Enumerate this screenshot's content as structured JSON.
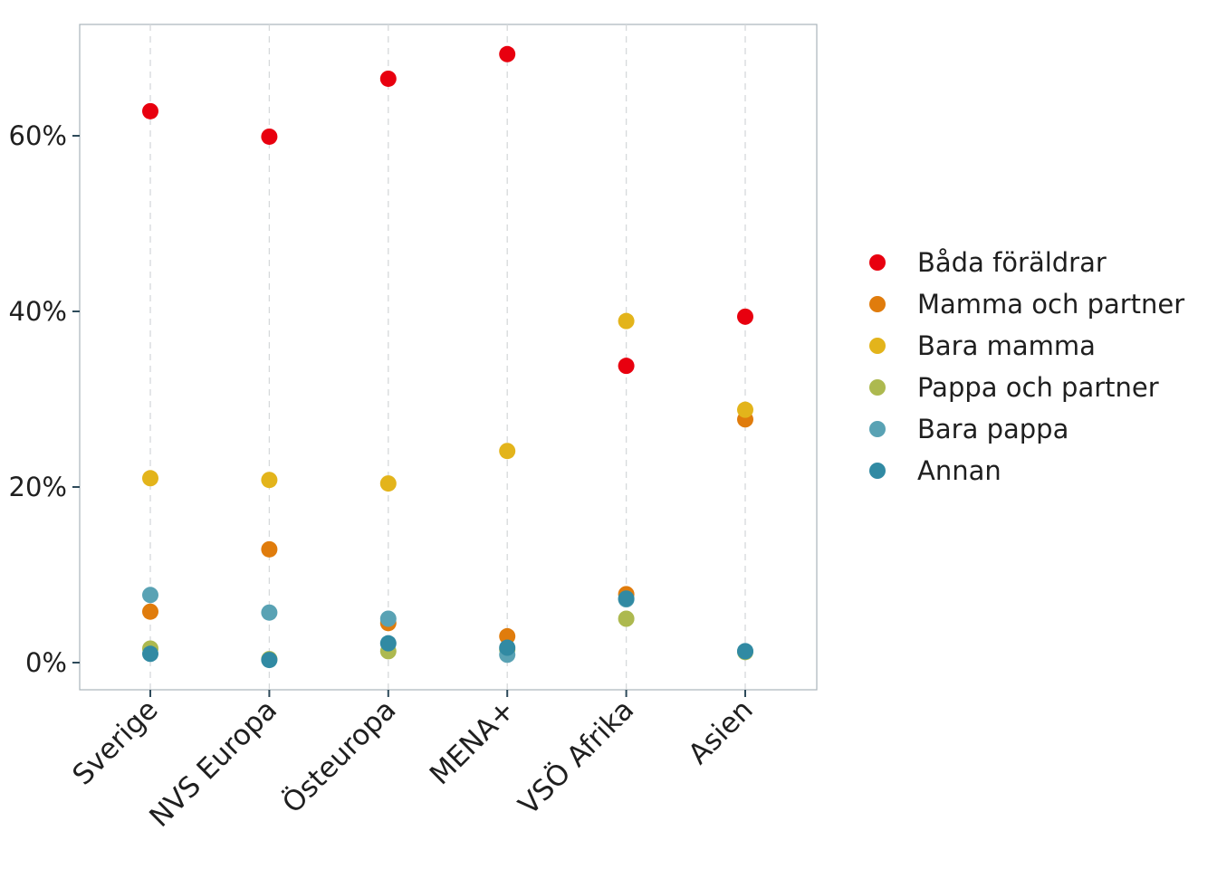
{
  "chart_data": {
    "type": "scatter",
    "title": "",
    "xlabel": "",
    "ylabel": "",
    "categories": [
      "Sverige",
      "NVS Europa",
      "Östeuropa",
      "MENA+",
      "VSÖ Afrika",
      "Asien"
    ],
    "y_ticks": [
      {
        "value": 0,
        "label": "0%"
      },
      {
        "value": 0.2,
        "label": "20%"
      },
      {
        "value": 0.4,
        "label": "40%"
      },
      {
        "value": 0.6,
        "label": "60%"
      }
    ],
    "ylim": [
      -0.03,
      0.73
    ],
    "grid": "vertical-dashed",
    "legend_position": "right",
    "series": [
      {
        "name": "Båda föräldrar",
        "color": "#e8000f",
        "values": [
          0.628,
          0.599,
          0.665,
          0.693,
          0.338,
          0.394
        ]
      },
      {
        "name": "Mamma och partner",
        "color": "#e07c0c",
        "values": [
          0.058,
          0.129,
          0.045,
          0.03,
          0.078,
          0.277
        ]
      },
      {
        "name": "Bara mamma",
        "color": "#e3b41b",
        "values": [
          0.21,
          0.208,
          0.204,
          0.241,
          0.389,
          0.288
        ]
      },
      {
        "name": "Pappa och partner",
        "color": "#adb94f",
        "values": [
          0.016,
          0.004,
          0.013,
          0.015,
          0.05,
          0.012
        ]
      },
      {
        "name": "Bara pappa",
        "color": "#59a2b4",
        "values": [
          0.077,
          0.057,
          0.05,
          0.009,
          0.072,
          0.013
        ]
      },
      {
        "name": "Annan",
        "color": "#318aa3",
        "values": [
          0.01,
          0.003,
          0.022,
          0.017,
          0.073,
          0.013
        ]
      }
    ]
  }
}
